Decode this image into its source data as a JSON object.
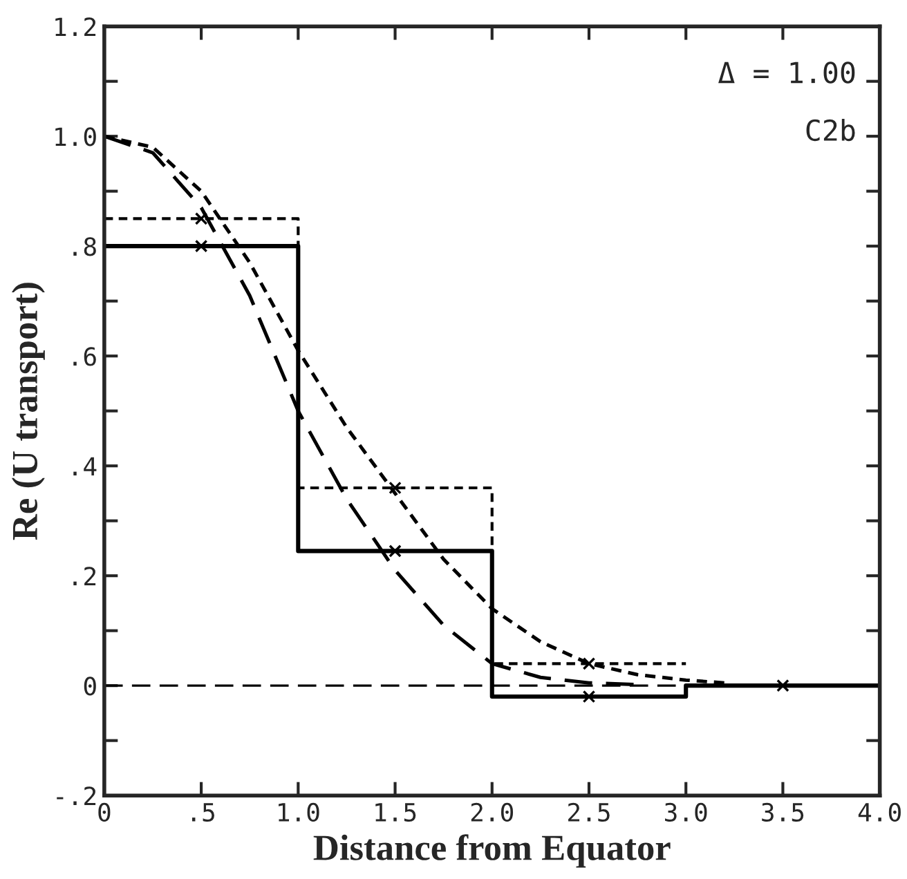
{
  "chart_data": {
    "type": "step",
    "xlabel": "Distance from Equator",
    "ylabel": "Re (U transport)",
    "annotations": [
      "Δ = 1.00",
      "C2b"
    ],
    "xlim": [
      0,
      4
    ],
    "ylim": [
      -0.2,
      1.2
    ],
    "xticks": [
      {
        "value": 0,
        "label": "0"
      },
      {
        "value": 0.5,
        "label": ".5"
      },
      {
        "value": 1.0,
        "label": "1.0"
      },
      {
        "value": 1.5,
        "label": "1.5"
      },
      {
        "value": 2.0,
        "label": "2.0"
      },
      {
        "value": 2.5,
        "label": "2.5"
      },
      {
        "value": 3.0,
        "label": "3.0"
      },
      {
        "value": 3.5,
        "label": "3.5"
      },
      {
        "value": 4.0,
        "label": "4.0"
      }
    ],
    "yticks": [
      {
        "value": -0.2,
        "label": "-.2"
      },
      {
        "value": -0.1,
        "label": null
      },
      {
        "value": 0,
        "label": "0"
      },
      {
        "value": 0.1,
        "label": null
      },
      {
        "value": 0.2,
        "label": ".2"
      },
      {
        "value": 0.3,
        "label": null
      },
      {
        "value": 0.4,
        "label": ".4"
      },
      {
        "value": 0.5,
        "label": null
      },
      {
        "value": 0.6,
        "label": ".6"
      },
      {
        "value": 0.7,
        "label": null
      },
      {
        "value": 0.8,
        "label": ".8"
      },
      {
        "value": 0.9,
        "label": null
      },
      {
        "value": 1.0,
        "label": "1.0"
      },
      {
        "value": 1.1,
        "label": null
      },
      {
        "value": 1.2,
        "label": "1.2"
      }
    ],
    "ref_lines": [
      {
        "axis": "y",
        "value": 0,
        "color": "#000000",
        "line_style": "dashed"
      }
    ],
    "grid": false,
    "legend": false,
    "series": [
      {
        "color": "#000000",
        "line_style": "solid",
        "x": [
          0,
          1,
          2,
          3,
          4
        ],
        "values": [
          0.8,
          0.245,
          -0.02,
          0,
          0
        ]
      },
      {
        "color": "#000000",
        "line_style": "dotted",
        "x": [
          0,
          1,
          2,
          3
        ],
        "values": [
          0.85,
          0.36,
          0.04,
          0.04
        ]
      },
      {
        "type": "line",
        "color": "#000000",
        "line_style": "dashed",
        "x": [
          0,
          0.25,
          0.5,
          0.75,
          1.0,
          1.25,
          1.5,
          1.75,
          2.0,
          2.25,
          2.5,
          2.75
        ],
        "values": [
          1.0,
          0.97,
          0.87,
          0.71,
          0.5,
          0.34,
          0.21,
          0.11,
          0.04,
          0.015,
          0.005,
          0.002
        ]
      },
      {
        "type": "line",
        "color": "#000000",
        "line_style": "dotted",
        "x": [
          0,
          0.25,
          0.5,
          0.75,
          1.0,
          1.25,
          1.5,
          1.75,
          2.0,
          2.25,
          2.5,
          2.75,
          3.0,
          3.2
        ],
        "values": [
          1.0,
          0.98,
          0.9,
          0.77,
          0.61,
          0.47,
          0.35,
          0.23,
          0.14,
          0.08,
          0.04,
          0.02,
          0.01,
          0.005
        ]
      },
      {
        "type": "scatter",
        "color": "#000000",
        "marker": "cross",
        "x": [
          0.5,
          1.5,
          2.5,
          3.5
        ],
        "values": [
          0.8,
          0.245,
          -0.02,
          0
        ]
      },
      {
        "type": "scatter",
        "color": "#000000",
        "marker": "cross",
        "x": [
          0.5,
          1.5,
          2.5
        ],
        "values": [
          0.85,
          0.36,
          0.04
        ]
      }
    ]
  }
}
